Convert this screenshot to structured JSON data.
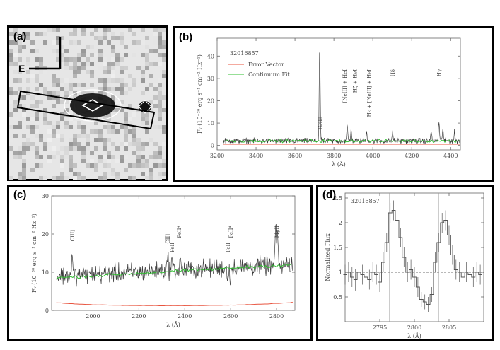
{
  "panels": {
    "a": {
      "label": "(a)",
      "compass_label": "E"
    },
    "b": {
      "label": "(b)"
    },
    "c": {
      "label": "(c)"
    },
    "d": {
      "label": "(d)"
    }
  },
  "chart_data": [
    {
      "panel": "b",
      "type": "line",
      "title": "32016857",
      "xlabel": "λ (Å)",
      "ylabel": "Fᵥ (10⁻³⁰ erg s⁻¹ cm⁻² Hz⁻¹)",
      "xlim": [
        3200,
        4450
      ],
      "ylim": [
        -2,
        48
      ],
      "xticks": [
        3200,
        3400,
        3600,
        3800,
        4000,
        4200,
        4400
      ],
      "yticks": [
        0,
        10,
        20,
        30,
        40
      ],
      "legend": [
        {
          "name": "Error Vector",
          "color": "#e8543f"
        },
        {
          "name": "Continuum Fit",
          "color": "#2fbf2f"
        }
      ],
      "series": [
        {
          "name": "Spectrum",
          "color": "#3c3c3c",
          "continuum": 2,
          "noise": 1.2,
          "lines": [
            [
              3727,
              43
            ],
            [
              3869,
              7
            ],
            [
              3889,
              5
            ],
            [
              3968,
              4
            ],
            [
              4102,
              4
            ],
            [
              4300,
              5
            ],
            [
              4340,
              9
            ],
            [
              4360,
              6
            ],
            [
              4420,
              4
            ]
          ]
        },
        {
          "name": "Error Vector",
          "color": "#e8543f",
          "level": 0.5
        },
        {
          "name": "Continuum Fit",
          "color": "#2fbf2f",
          "level": 2
        }
      ],
      "annotations": [
        {
          "text": "[OII]",
          "x": 3727
        },
        {
          "text": "[NeIII] + HeI",
          "x": 3869
        },
        {
          "text": "Hζ + HeI",
          "x": 3889
        },
        {
          "text": "Hε + [NeIII] + HeI",
          "x": 3968
        },
        {
          "text": "Hδ",
          "x": 4102
        },
        {
          "text": "Hγ",
          "x": 4340
        }
      ]
    },
    {
      "panel": "c",
      "type": "line",
      "xlabel": "λ (Å)",
      "ylabel": "Fᵥ (10⁻³⁰ erg s⁻¹ cm⁻² Hz⁻¹)",
      "xlim": [
        1820,
        2880
      ],
      "ylim": [
        0,
        30
      ],
      "xticks": [
        2000,
        2200,
        2400,
        2600,
        2800
      ],
      "yticks": [
        0,
        10,
        20,
        30
      ],
      "series": [
        {
          "name": "Spectrum",
          "color": "#3c3c3c",
          "continuum_start": 9,
          "continuum_end": 12,
          "noise": 2.4,
          "lines": [
            [
              1909,
              5
            ],
            [
              2326,
              4
            ],
            [
              2344,
              3
            ],
            [
              2382,
              3
            ],
            [
              2600,
              -3
            ],
            [
              2587,
              -3
            ],
            [
              2796,
              10
            ],
            [
              2803,
              9
            ]
          ]
        },
        {
          "name": "Error Vector",
          "color": "#e8543f",
          "start": 2.0,
          "min": 1.2,
          "end": 2.1
        },
        {
          "name": "Continuum Fit",
          "color": "#2fbf2f",
          "start": 8.5,
          "end": 12
        }
      ],
      "annotations": [
        {
          "text": "CIII]",
          "x": 1909
        },
        {
          "text": "CII]",
          "x": 2326
        },
        {
          "text": "FeII",
          "x": 2344
        },
        {
          "text": "FeII*",
          "x": 2374
        },
        {
          "text": "FeII*",
          "x": 2600
        },
        {
          "text": "FeII",
          "x": 2587
        },
        {
          "text": "MgII",
          "x": 2800
        }
      ]
    },
    {
      "panel": "d",
      "type": "line",
      "title": "32016857",
      "xlabel": "λ (Å)",
      "ylabel": "Normalized Flux",
      "xlim": [
        2790,
        2810
      ],
      "ylim": [
        0,
        2.6
      ],
      "xticks": [
        2795,
        2800,
        2805
      ],
      "yticks": [
        0.5,
        1,
        1.5,
        2,
        2.5
      ],
      "reference_line": 1,
      "vlines": [
        2796.4,
        2803.5
      ],
      "series": [
        {
          "name": "Normalized Flux",
          "color": "#555555",
          "x": [
            2790.0,
            2790.5,
            2791.0,
            2791.5,
            2792.0,
            2792.5,
            2793.0,
            2793.5,
            2794.0,
            2794.5,
            2795.0,
            2795.5,
            2796.0,
            2796.5,
            2797.0,
            2797.5,
            2798.0,
            2798.5,
            2799.0,
            2799.5,
            2800.0,
            2800.5,
            2801.0,
            2801.5,
            2802.0,
            2802.5,
            2803.0,
            2803.5,
            2804.0,
            2804.5,
            2805.0,
            2805.5,
            2806.0,
            2806.5,
            2807.0,
            2807.5,
            2808.0,
            2808.5,
            2809.0,
            2809.5
          ],
          "y": [
            0.95,
            1.0,
            0.9,
            0.85,
            1.0,
            0.95,
            0.9,
            0.85,
            1.0,
            0.95,
            0.8,
            1.2,
            1.6,
            2.2,
            2.25,
            2.05,
            1.7,
            1.3,
            1.0,
            1.05,
            0.9,
            0.7,
            0.45,
            0.4,
            0.35,
            0.55,
            1.2,
            1.6,
            2.0,
            2.05,
            1.75,
            1.35,
            1.05,
            1.0,
            0.9,
            1.0,
            0.95,
            0.9,
            1.0,
            0.95
          ],
          "err": [
            0.2,
            0.2,
            0.2,
            0.22,
            0.2,
            0.2,
            0.22,
            0.2,
            0.2,
            0.2,
            0.2,
            0.2,
            0.2,
            0.2,
            0.2,
            0.2,
            0.2,
            0.2,
            0.2,
            0.2,
            0.2,
            0.2,
            0.15,
            0.15,
            0.15,
            0.15,
            0.2,
            0.2,
            0.2,
            0.2,
            0.2,
            0.2,
            0.2,
            0.2,
            0.2,
            0.2,
            0.2,
            0.2,
            0.2,
            0.2
          ]
        }
      ]
    }
  ]
}
